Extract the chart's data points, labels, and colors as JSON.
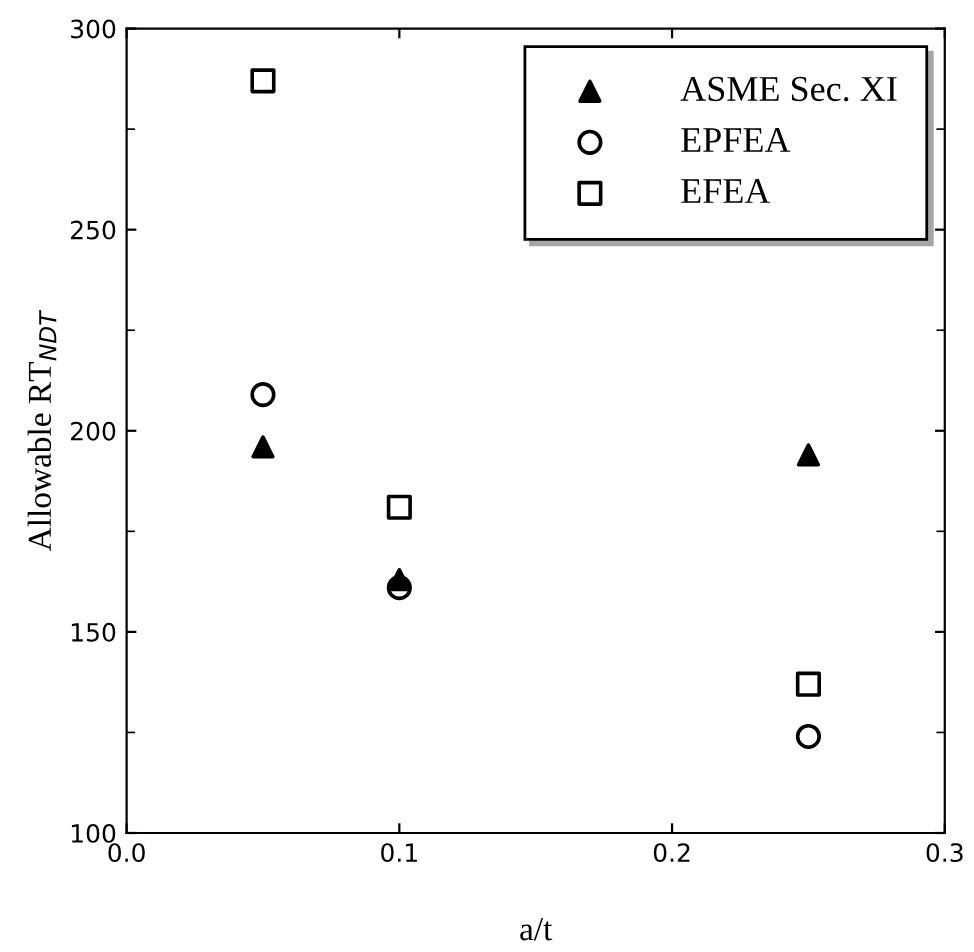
{
  "chart_data": {
    "type": "scatter",
    "xlabel": "a/t",
    "ylabel": "Allowable RT$_{NDT}$",
    "x": [
      0.05,
      0.1,
      0.25
    ],
    "series": [
      {
        "name": "ASME Sec. XI",
        "color": "#000000",
        "marker": "triangle",
        "values": [
          196,
          163,
          194
        ]
      },
      {
        "name": "EPFEA",
        "color": "#000000",
        "marker": "circle",
        "values": [
          209,
          161,
          124
        ]
      },
      {
        "name": "EFEA",
        "color": "#000000",
        "marker": "square",
        "values": [
          287,
          181,
          137
        ]
      }
    ],
    "xlim": [
      0.0,
      0.3
    ],
    "xticks": [
      {
        "value": 0.0,
        "label": "0.0"
      },
      0.1,
      0.2,
      0.3
    ],
    "ylim": [
      100,
      300
    ],
    "yticks": [
      100,
      150,
      200,
      250,
      300
    ],
    "grid": false,
    "legend": "top right"
  }
}
